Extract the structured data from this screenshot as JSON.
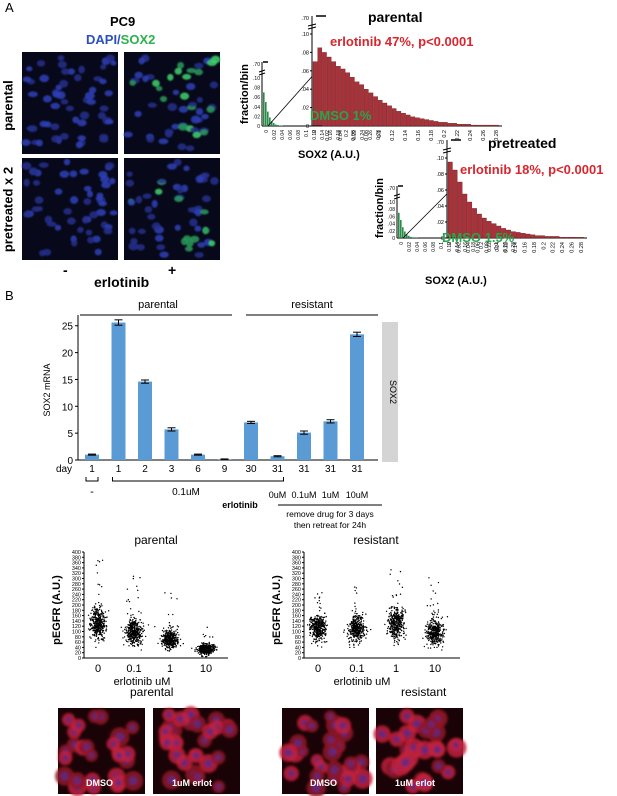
{
  "panelA": {
    "label": "A",
    "cellline": "PC9",
    "stain_dapi": "DAPI/",
    "stain_sox2": "SOX2",
    "rows": [
      "parental",
      "pretreated x 2"
    ],
    "cols": [
      "-",
      "+"
    ],
    "xlabel": "erlotinib",
    "colors": {
      "dapi": "#2b4fc0",
      "sox2": "#2bb24c",
      "erlotinib_text": "#d8262e",
      "dmso_text": "#26a64a"
    }
  },
  "histograms": [
    {
      "title": "parental",
      "ylabel": "fraction/bin",
      "xlabel": "SOX2 (A.U.)",
      "erlotinib_label": "erlotinib 47%, p<0.0001",
      "dmso_label": "DMSO 1%",
      "big_yticks": [
        "0",
        ".02",
        ".04",
        ".06",
        ".08",
        ".10",
        ".70"
      ],
      "small_yticks": [
        "0",
        ".02",
        ".04",
        ".06",
        ".08",
        ".10",
        ".70"
      ],
      "xticks": [
        "0",
        "0.02",
        "0.04",
        "0.06",
        "0.08",
        "0.1",
        "0.12",
        "0.14",
        "0.16",
        "0.18",
        "0.2",
        "0.22",
        "0.24",
        "0.26",
        "0.28"
      ]
    },
    {
      "title": "pretreated",
      "ylabel": "fraction/bin",
      "xlabel": "SOX2 (A.U.)",
      "erlotinib_label": "erlotinib 18%, p<0.0001",
      "dmso_label": "DMSO 1.5%",
      "big_yticks": [
        "0",
        ".02",
        ".04",
        ".06",
        ".08",
        ".10",
        ".70"
      ],
      "small_yticks": [
        "0",
        ".02",
        ".04",
        ".06",
        ".08",
        ".10",
        ".70"
      ],
      "xticks": [
        "0",
        "0.02",
        "0.04",
        "0.06",
        "0.08",
        "0.1",
        "0.12",
        "0.14",
        "0.16",
        "0.18",
        "0.2",
        "0.22",
        "0.24",
        "0.26",
        "0.28"
      ]
    }
  ],
  "panelB": {
    "label": "B",
    "group_parental": "parental",
    "group_resistant": "resistant",
    "side_label": "SOX2",
    "dash": "-",
    "conc_label": "0.1uM",
    "erlotinib_label": "erlotinib",
    "remove_note_1": "remove drug for 3 days",
    "remove_note_2": "then retreat for 24h"
  },
  "chart_data": [
    {
      "type": "bar",
      "ylabel": "SOX2 mRNA",
      "ylim": [
        0,
        27
      ],
      "yticks": [
        0,
        5,
        10,
        15,
        20,
        25
      ],
      "xlabel_prefix": "day",
      "categories": [
        "1",
        "1",
        "2",
        "3",
        "6",
        "9",
        "30",
        "31",
        "31",
        "31",
        "31"
      ],
      "conc": [
        "",
        "",
        "",
        "",
        "",
        "",
        "",
        "0uM",
        "0.1uM",
        "1uM",
        "10uM"
      ],
      "values": [
        1.0,
        25.6,
        14.6,
        5.7,
        1.0,
        0.15,
        7.0,
        0.7,
        5.1,
        7.2,
        23.4
      ],
      "errors": [
        0.1,
        0.5,
        0.3,
        0.3,
        0.1,
        0.05,
        0.2,
        0.1,
        0.3,
        0.3,
        0.4
      ],
      "bar_color": "#5b9bd5",
      "grid": false
    },
    {
      "type": "scatter",
      "title": "parental",
      "xlabel": "erlotinib uM",
      "ylabel": "pEGFR (A.U.)",
      "ylim": [
        0,
        400
      ],
      "yticks": [
        0,
        20,
        40,
        60,
        80,
        100,
        120,
        140,
        160,
        180,
        200,
        220,
        240,
        260,
        280,
        300,
        320,
        340,
        360,
        380,
        400
      ],
      "categories": [
        "0",
        "0.1",
        "1",
        "10"
      ],
      "series": [
        {
          "x": "0",
          "center": 130,
          "spread": 30,
          "min": 40,
          "max": 385
        },
        {
          "x": "0.1",
          "center": 100,
          "spread": 25,
          "min": 30,
          "max": 310
        },
        {
          "x": "1",
          "center": 70,
          "spread": 18,
          "min": 20,
          "max": 250
        },
        {
          "x": "10",
          "center": 32,
          "spread": 10,
          "min": 5,
          "max": 120
        }
      ]
    },
    {
      "type": "scatter",
      "title": "resistant",
      "xlabel": "erlotinib uM",
      "ylabel": "pEGFR (A.U.)",
      "ylim": [
        0,
        400
      ],
      "yticks": [
        0,
        20,
        40,
        60,
        80,
        100,
        120,
        140,
        160,
        180,
        200,
        220,
        240,
        260,
        280,
        300,
        320,
        340,
        360,
        380,
        400
      ],
      "categories": [
        "0",
        "0.1",
        "1",
        "10"
      ],
      "series": [
        {
          "x": "0",
          "center": 115,
          "spread": 25,
          "min": 40,
          "max": 280
        },
        {
          "x": "0.1",
          "center": 110,
          "spread": 25,
          "min": 40,
          "max": 270
        },
        {
          "x": "1",
          "center": 130,
          "spread": 30,
          "min": 40,
          "max": 340
        },
        {
          "x": "10",
          "center": 95,
          "spread": 25,
          "min": 30,
          "max": 320
        }
      ]
    }
  ],
  "bottom_images": {
    "parental_title": "parental",
    "resistant_title": "resistant",
    "labels": [
      "DMSO",
      "1uM erlot",
      "DMSO",
      "1uM erlot"
    ]
  }
}
